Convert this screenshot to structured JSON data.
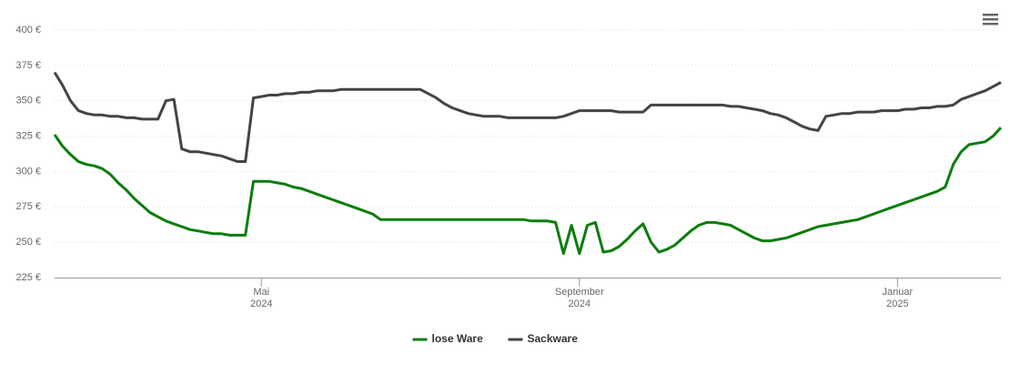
{
  "chart_data": {
    "type": "line",
    "categories": [
      null,
      null,
      null,
      null,
      null,
      null,
      null,
      null,
      null,
      null,
      null,
      null,
      null,
      null,
      null,
      null,
      null,
      null,
      null,
      null,
      null,
      null,
      null,
      null,
      null,
      null,
      "Mai\n2024",
      null,
      null,
      null,
      null,
      null,
      null,
      null,
      null,
      null,
      null,
      null,
      null,
      null,
      null,
      null,
      null,
      null,
      null,
      null,
      null,
      null,
      null,
      null,
      null,
      null,
      null,
      null,
      null,
      null,
      null,
      null,
      null,
      null,
      null,
      null,
      null,
      null,
      null,
      null,
      "September\n2024",
      null,
      null,
      null,
      null,
      null,
      null,
      null,
      null,
      null,
      null,
      null,
      null,
      null,
      null,
      null,
      null,
      null,
      null,
      null,
      null,
      null,
      null,
      null,
      null,
      null,
      null,
      null,
      null,
      null,
      null,
      null,
      null,
      null,
      null,
      null,
      null,
      null,
      null,
      null,
      "Januar\n2025",
      null,
      null,
      null,
      null,
      null,
      null,
      null,
      null,
      null,
      null,
      null,
      null,
      null
    ],
    "series": [
      {
        "name": "lose Ware",
        "color": "#0b7d0b",
        "values": [
          326,
          318,
          312,
          307,
          305,
          304,
          302,
          298,
          292,
          287,
          281,
          276,
          271,
          268,
          265,
          263,
          261,
          259,
          258,
          257,
          256,
          256,
          255,
          255,
          255,
          293,
          293,
          293,
          292,
          291,
          289,
          288,
          286,
          284,
          282,
          280,
          278,
          276,
          274,
          272,
          270,
          266,
          266,
          266,
          266,
          266,
          266,
          266,
          266,
          266,
          266,
          266,
          266,
          266,
          266,
          266,
          266,
          266,
          266,
          266,
          265,
          265,
          265,
          264,
          242,
          262,
          242,
          262,
          264,
          243,
          244,
          247,
          252,
          258,
          263,
          250,
          243,
          245,
          248,
          253,
          258,
          262,
          264,
          264,
          263,
          262,
          259,
          256,
          253,
          251,
          251,
          252,
          253,
          255,
          257,
          259,
          261,
          262,
          263,
          264,
          265,
          266,
          268,
          270,
          272,
          274,
          276,
          278,
          280,
          282,
          284,
          286,
          289,
          305,
          314,
          319,
          320,
          321,
          325,
          331
        ]
      },
      {
        "name": "Sackware",
        "color": "#434348",
        "values": [
          370,
          361,
          350,
          343,
          341,
          340,
          340,
          339,
          339,
          338,
          338,
          337,
          337,
          337,
          350,
          351,
          316,
          314,
          314,
          313,
          312,
          311,
          309,
          307,
          307,
          352,
          353,
          354,
          354,
          355,
          355,
          356,
          356,
          357,
          357,
          357,
          358,
          358,
          358,
          358,
          358,
          358,
          358,
          358,
          358,
          358,
          358,
          355,
          352,
          348,
          345,
          343,
          341,
          340,
          339,
          339,
          339,
          338,
          338,
          338,
          338,
          338,
          338,
          338,
          339,
          341,
          343,
          343,
          343,
          343,
          343,
          342,
          342,
          342,
          342,
          347,
          347,
          347,
          347,
          347,
          347,
          347,
          347,
          347,
          347,
          346,
          346,
          345,
          344,
          343,
          341,
          340,
          338,
          335,
          332,
          330,
          329,
          339,
          340,
          341,
          341,
          342,
          342,
          342,
          343,
          343,
          343,
          344,
          344,
          345,
          345,
          346,
          346,
          347,
          351,
          353,
          355,
          357,
          360,
          363
        ]
      }
    ],
    "ylim": [
      225,
      400
    ],
    "yticks": [
      {
        "value": 225,
        "label": "225 €"
      },
      {
        "value": 250,
        "label": "250 €"
      },
      {
        "value": 275,
        "label": "275 €"
      },
      {
        "value": 300,
        "label": "300 €"
      },
      {
        "value": 325,
        "label": "325 €"
      },
      {
        "value": 350,
        "label": "350 €"
      },
      {
        "value": 375,
        "label": "375 €"
      },
      {
        "value": 400,
        "label": "400 €"
      }
    ],
    "grid": true
  }
}
